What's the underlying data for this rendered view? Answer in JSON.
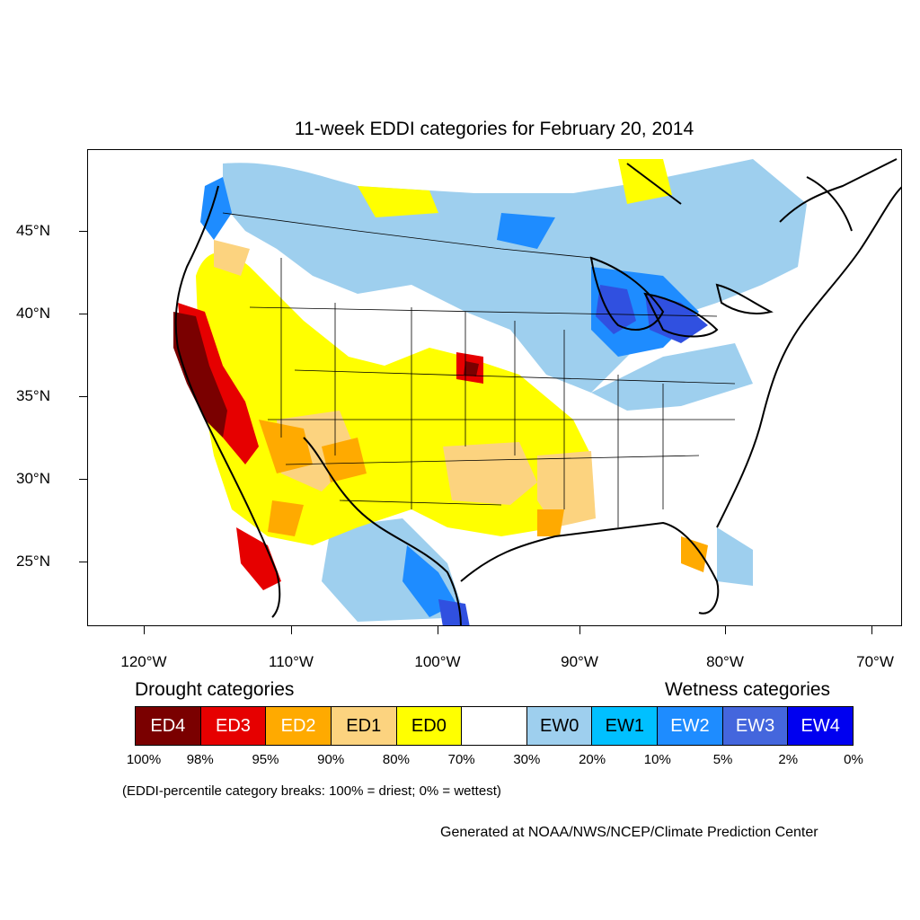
{
  "title": "11-week EDDI categories for February 20, 2014",
  "latitude_labels": [
    "45°N",
    "40°N",
    "35°N",
    "30°N",
    "25°N"
  ],
  "longitude_labels": [
    "120°W",
    "110°W",
    "100°W",
    "90°W",
    "80°W",
    "70°W"
  ],
  "legend": {
    "drought_heading": "Drought categories",
    "wetness_heading": "Wetness categories",
    "categories": [
      {
        "label": "ED4",
        "color": "#7a0000"
      },
      {
        "label": "ED3",
        "color": "#e60000"
      },
      {
        "label": "ED2",
        "color": "#ffaa00"
      },
      {
        "label": "ED1",
        "color": "#fcd37f"
      },
      {
        "label": "ED0",
        "color": "#ffff00"
      },
      {
        "label": "",
        "color": "#ffffff"
      },
      {
        "label": "EW0",
        "color": "#9ecfee"
      },
      {
        "label": "EW1",
        "color": "#00c0ff"
      },
      {
        "label": "EW2",
        "color": "#1e8cff"
      },
      {
        "label": "EW3",
        "color": "#4466dd"
      },
      {
        "label": "EW4",
        "color": "#0000f0"
      }
    ],
    "percentiles": [
      "100%",
      "98%",
      "95%",
      "90%",
      "80%",
      "70%",
      "30%",
      "20%",
      "10%",
      "5%",
      "2%",
      "0%"
    ],
    "note": "(EDDI-percentile category breaks: 100% = driest; 0% = wettest)"
  },
  "credit": "Generated at NOAA/NWS/NCEP/Climate Prediction Center"
}
